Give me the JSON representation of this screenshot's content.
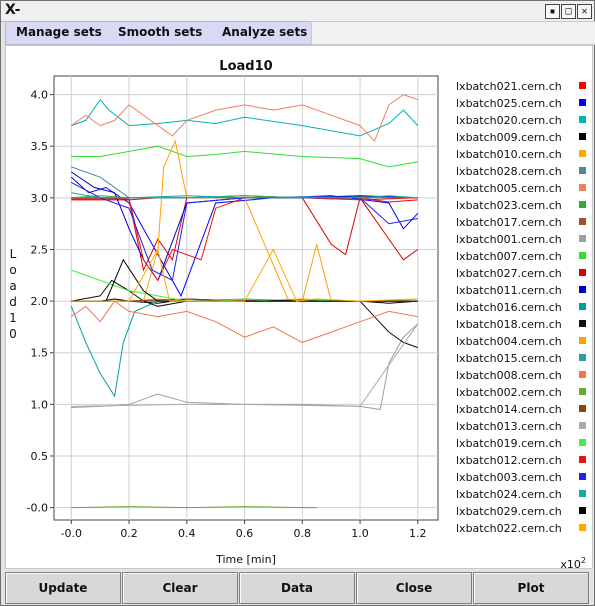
{
  "window": {
    "logo": "X-",
    "buttons": [
      {
        "name": "minimize-button",
        "glyph": "▪"
      },
      {
        "name": "maximize-button",
        "glyph": "□"
      },
      {
        "name": "close-window-button",
        "glyph": "✕"
      }
    ]
  },
  "menu": {
    "items": [
      "Manage sets",
      "Smooth sets",
      "Analyze sets"
    ]
  },
  "buttons": [
    "Update",
    "Clear",
    "Data",
    "Close",
    "Plot"
  ],
  "chart_data": {
    "type": "line",
    "title": "Load10",
    "xlabel": "Time [min]",
    "ylabel": "Load10",
    "x_multiplier_label": "x10",
    "x_multiplier_exp": "2",
    "xlim": [
      -0.06,
      1.27
    ],
    "ylim": [
      -0.12,
      4.18
    ],
    "x_ticks": [
      -0.0,
      0.2,
      0.4,
      0.6,
      0.8,
      1.0,
      1.2
    ],
    "x_tick_labels": [
      "-0.0",
      "0.2",
      "0.4",
      "0.6",
      "0.8",
      "1.0",
      "1.2"
    ],
    "y_ticks": [
      -0.0,
      0.5,
      1.0,
      1.5,
      2.0,
      2.5,
      3.0,
      3.5,
      4.0
    ],
    "y_tick_labels": [
      "-0.0",
      "0.5",
      "1.0",
      "1.5",
      "2.0",
      "2.5",
      "3.0",
      "3.5",
      "4.0"
    ],
    "grid": true,
    "legend_position": "right",
    "series": [
      {
        "name": "lxbatch021.cern.ch",
        "color": "#ff0000",
        "x": [
          0.0,
          0.15,
          0.2,
          0.3,
          0.4,
          0.6,
          0.9,
          1.0,
          1.1,
          1.2
        ],
        "y": [
          3.0,
          3.0,
          2.98,
          3.0,
          3.0,
          3.02,
          2.99,
          3.0,
          2.96,
          2.98
        ]
      },
      {
        "name": "lxbatch025.cern.ch",
        "color": "#0000ff",
        "x": [
          0.0,
          0.06,
          0.12,
          0.2,
          0.26,
          0.32,
          0.38,
          0.5,
          0.7,
          0.9,
          1.1,
          1.15,
          1.2
        ],
        "y": [
          3.2,
          3.05,
          3.1,
          2.95,
          2.65,
          2.35,
          2.05,
          2.95,
          3.0,
          3.02,
          2.95,
          2.7,
          2.85
        ]
      },
      {
        "name": "lxbatch020.cern.ch",
        "color": "#00b3b3",
        "x": [
          0.0,
          0.05,
          0.1,
          0.13,
          0.2,
          0.3,
          0.4,
          0.5,
          0.6,
          0.8,
          1.0,
          1.1,
          1.15,
          1.2
        ],
        "y": [
          3.7,
          3.75,
          3.95,
          3.85,
          3.7,
          3.72,
          3.75,
          3.72,
          3.78,
          3.7,
          3.6,
          3.72,
          3.85,
          3.7
        ]
      },
      {
        "name": "lxbatch009.cern.ch",
        "color": "#000000",
        "x": [
          0.0,
          0.1,
          0.15,
          0.2,
          0.3,
          0.4,
          0.6,
          0.8,
          1.0,
          1.1,
          1.2
        ],
        "y": [
          2.0,
          2.0,
          2.02,
          2.0,
          1.98,
          2.02,
          2.0,
          2.0,
          2.0,
          1.98,
          2.0
        ]
      },
      {
        "name": "lxbatch010.cern.ch",
        "color": "#ffa500",
        "x": [
          0.0,
          0.2,
          0.3,
          0.4,
          0.6,
          0.8,
          1.0,
          1.2
        ],
        "y": [
          2.0,
          2.0,
          2.02,
          2.0,
          2.0,
          2.02,
          2.0,
          2.02
        ]
      },
      {
        "name": "lxbatch028.cern.ch",
        "color": "#4a8a9a",
        "x": [
          0.0,
          0.1,
          0.2,
          0.4,
          0.6,
          0.8,
          1.0,
          1.1,
          1.2
        ],
        "y": [
          3.3,
          3.2,
          3.0,
          3.0,
          3.02,
          3.0,
          3.02,
          3.0,
          3.0
        ]
      },
      {
        "name": "lxbatch005.cern.ch",
        "color": "#f08060",
        "x": [
          0.0,
          0.05,
          0.1,
          0.15,
          0.2,
          0.3,
          0.35,
          0.4,
          0.5,
          0.6,
          0.7,
          0.8,
          0.9,
          1.0,
          1.05,
          1.1,
          1.15,
          1.2
        ],
        "y": [
          3.7,
          3.8,
          3.7,
          3.75,
          3.9,
          3.7,
          3.6,
          3.75,
          3.85,
          3.9,
          3.85,
          3.9,
          3.8,
          3.7,
          3.55,
          3.9,
          4.0,
          3.95
        ]
      },
      {
        "name": "lxbatch023.cern.ch",
        "color": "#33aa33",
        "x": [
          0.0,
          0.1,
          0.2,
          0.4,
          0.6,
          0.8,
          1.0,
          1.2
        ],
        "y": [
          3.0,
          3.02,
          3.0,
          3.0,
          3.02,
          3.0,
          3.01,
          3.0
        ]
      },
      {
        "name": "lxbatch017.cern.ch",
        "color": "#a0522d",
        "x": [
          0.0,
          0.2,
          0.4,
          0.6,
          0.8,
          1.0,
          1.2
        ],
        "y": [
          2.0,
          2.0,
          2.0,
          2.01,
          2.0,
          2.0,
          2.0
        ]
      },
      {
        "name": "lxbatch001.cern.ch",
        "color": "#a0a0a0",
        "x": [
          0.0,
          0.1,
          0.2,
          0.25,
          0.3,
          0.4,
          0.6,
          0.8,
          1.0,
          1.07,
          1.1,
          1.15,
          1.2
        ],
        "y": [
          0.97,
          0.98,
          1.0,
          1.05,
          1.1,
          1.02,
          1.0,
          1.0,
          0.98,
          0.95,
          1.4,
          1.65,
          1.78
        ]
      },
      {
        "name": "lxbatch007.cern.ch",
        "color": "#33dd33",
        "x": [
          0.0,
          0.1,
          0.2,
          0.3,
          0.4,
          0.5,
          0.6,
          0.8,
          1.0,
          1.1,
          1.2
        ],
        "y": [
          3.4,
          3.4,
          3.45,
          3.5,
          3.4,
          3.42,
          3.45,
          3.4,
          3.38,
          3.3,
          3.35
        ]
      },
      {
        "name": "lxbatch027.cern.ch",
        "color": "#dd0000",
        "x": [
          0.0,
          0.2,
          0.25,
          0.3,
          0.35,
          0.4,
          0.6,
          0.8,
          0.9,
          0.95,
          1.0,
          1.1,
          1.15,
          1.2
        ],
        "y": [
          2.98,
          2.98,
          2.3,
          2.6,
          2.4,
          3.0,
          3.0,
          3.0,
          2.55,
          2.45,
          3.0,
          2.6,
          2.4,
          2.5
        ]
      },
      {
        "name": "lxbatch011.cern.ch",
        "color": "#0000cc",
        "x": [
          0.0,
          0.08,
          0.15,
          0.2,
          0.25,
          0.3,
          0.4,
          0.6,
          0.8,
          1.0,
          1.2
        ],
        "y": [
          3.25,
          3.1,
          3.05,
          2.7,
          2.4,
          2.2,
          2.95,
          3.0,
          3.0,
          3.02,
          3.0
        ]
      },
      {
        "name": "lxbatch016.cern.ch",
        "color": "#00a0a0",
        "x": [
          0.0,
          0.05,
          0.1,
          0.15,
          0.18,
          0.22,
          0.3,
          0.4,
          0.6,
          0.8,
          1.0,
          1.2
        ],
        "y": [
          1.95,
          1.6,
          1.3,
          1.08,
          1.6,
          1.9,
          2.0,
          2.0,
          2.02,
          2.0,
          2.0,
          2.0
        ]
      },
      {
        "name": "lxbatch018.cern.ch",
        "color": "#111111",
        "x": [
          0.0,
          0.1,
          0.14,
          0.2,
          0.25,
          0.3,
          0.4,
          0.6,
          0.8,
          1.0,
          1.1,
          1.15,
          1.2
        ],
        "y": [
          2.0,
          2.05,
          2.2,
          2.1,
          2.0,
          1.95,
          2.0,
          2.0,
          2.01,
          2.0,
          1.7,
          1.6,
          1.55
        ]
      },
      {
        "name": "lxbatch004.cern.ch",
        "color": "#ffa000",
        "x": [
          0.0,
          0.25,
          0.3,
          0.32,
          0.36,
          0.4,
          0.6,
          0.75,
          0.8,
          0.85,
          0.9,
          1.0,
          1.1,
          1.2
        ],
        "y": [
          2.0,
          2.0,
          2.5,
          3.3,
          3.55,
          3.0,
          3.0,
          2.02,
          2.0,
          2.55,
          2.0,
          2.0,
          2.0,
          2.02
        ]
      },
      {
        "name": "lxbatch015.cern.ch",
        "color": "#3399aa",
        "x": [
          0.0,
          0.1,
          0.2,
          0.4,
          0.6,
          0.8,
          1.0,
          1.2
        ],
        "y": [
          3.0,
          3.0,
          3.0,
          3.0,
          3.0,
          3.01,
          3.0,
          3.0
        ]
      },
      {
        "name": "lxbatch008.cern.ch",
        "color": "#f07850",
        "x": [
          0.0,
          0.05,
          0.1,
          0.15,
          0.2,
          0.3,
          0.4,
          0.5,
          0.6,
          0.7,
          0.8,
          0.9,
          1.0,
          1.1,
          1.2
        ],
        "y": [
          1.85,
          1.95,
          1.8,
          2.0,
          1.9,
          1.85,
          1.9,
          1.8,
          1.65,
          1.75,
          1.6,
          1.7,
          1.8,
          1.9,
          1.85
        ]
      },
      {
        "name": "lxbatch002.cern.ch",
        "color": "#66aa33",
        "x": [
          0.0,
          0.2,
          0.4,
          0.6,
          0.8,
          0.85
        ],
        "y": [
          0.0,
          0.01,
          0.0,
          0.01,
          0.0,
          0.0
        ]
      },
      {
        "name": "lxbatch014.cern.ch",
        "color": "#8b4513",
        "x": [
          0.0,
          0.2,
          0.4,
          0.6,
          0.8,
          1.0,
          1.2
        ],
        "y": [
          2.0,
          2.0,
          2.02,
          2.0,
          2.0,
          2.0,
          2.0
        ]
      },
      {
        "name": "lxbatch013.cern.ch",
        "color": "#aaaaaa",
        "x": [
          0.0,
          0.2,
          0.4,
          0.6,
          0.8,
          1.0,
          1.2
        ],
        "y": [
          0.98,
          0.99,
          1.0,
          1.0,
          0.99,
          0.98,
          1.78
        ]
      },
      {
        "name": "lxbatch019.cern.ch",
        "color": "#44ee44",
        "x": [
          0.0,
          0.1,
          0.2,
          0.3,
          0.4,
          0.5,
          0.6,
          0.7,
          0.8,
          0.9,
          1.0,
          1.1,
          1.2
        ],
        "y": [
          2.3,
          2.2,
          2.1,
          2.05,
          2.0,
          2.0,
          2.02,
          2.0,
          2.0,
          2.01,
          2.0,
          2.0,
          2.0
        ]
      },
      {
        "name": "lxbatch012.cern.ch",
        "color": "#ee1111",
        "x": [
          0.0,
          0.2,
          0.25,
          0.3,
          0.35,
          0.45,
          0.5,
          0.6,
          0.8,
          1.0,
          1.2
        ],
        "y": [
          2.99,
          2.99,
          2.4,
          2.2,
          2.5,
          2.4,
          2.9,
          3.0,
          3.0,
          2.98,
          3.0
        ]
      },
      {
        "name": "lxbatch003.cern.ch",
        "color": "#2222ee",
        "x": [
          0.0,
          0.1,
          0.2,
          0.28,
          0.35,
          0.4,
          0.6,
          0.8,
          1.0,
          1.1,
          1.2
        ],
        "y": [
          3.15,
          3.0,
          2.9,
          2.3,
          2.2,
          2.95,
          3.0,
          3.0,
          3.0,
          2.75,
          2.8
        ]
      },
      {
        "name": "lxbatch024.cern.ch",
        "color": "#11aaaa",
        "x": [
          0.0,
          0.1,
          0.2,
          0.4,
          0.6,
          0.8,
          1.0,
          1.1,
          1.2
        ],
        "y": [
          3.05,
          3.0,
          3.0,
          3.02,
          3.0,
          3.0,
          3.0,
          3.02,
          3.0
        ]
      },
      {
        "name": "lxbatch029.cern.ch",
        "color": "#000000",
        "x": [
          0.0,
          0.12,
          0.18,
          0.25,
          0.3,
          0.4,
          0.6,
          0.8,
          1.0,
          1.2
        ],
        "y": [
          2.0,
          2.0,
          2.4,
          2.1,
          2.0,
          2.0,
          2.0,
          2.0,
          2.0,
          2.0
        ]
      },
      {
        "name": "lxbatch022.cern.ch",
        "color": "#ffaa00",
        "x": [
          0.0,
          0.2,
          0.3,
          0.34,
          0.4,
          0.6,
          0.7,
          0.78,
          0.85,
          1.0,
          1.2
        ],
        "y": [
          2.0,
          2.0,
          2.5,
          2.0,
          2.0,
          2.0,
          2.5,
          2.0,
          2.02,
          2.0,
          2.02
        ]
      }
    ]
  }
}
